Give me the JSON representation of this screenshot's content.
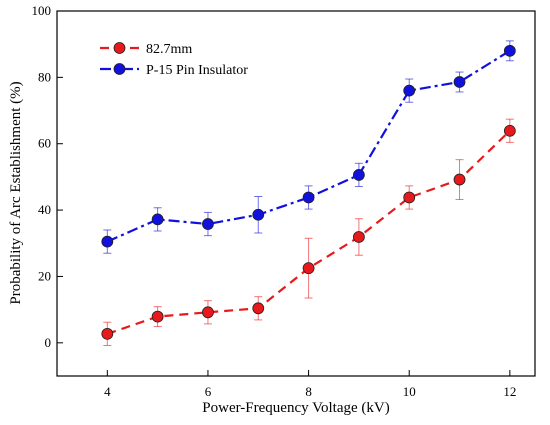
{
  "chart_data": {
    "type": "line",
    "title": "",
    "xlabel": "Power-Frequency Voltage (kV)",
    "ylabel": "Probability of Arc Establishment (%)",
    "xlim": [
      3,
      12.5
    ],
    "ylim": [
      -10,
      100
    ],
    "xticks": [
      4,
      6,
      8,
      10,
      12
    ],
    "yticks": [
      0,
      20,
      40,
      60,
      80,
      100
    ],
    "grid": false,
    "legend_position": "top-left",
    "x": [
      4,
      5,
      6,
      7,
      8,
      9,
      10,
      11,
      12
    ],
    "series": [
      {
        "name": "82.7mm",
        "color": "#e8191c",
        "line_style": "dashed",
        "marker": "circle",
        "values": [
          2.7,
          7.9,
          9.2,
          10.4,
          22.5,
          31.9,
          43.8,
          49.2,
          63.9
        ],
        "error": [
          3.5,
          3.0,
          3.5,
          3.5,
          9.0,
          5.5,
          3.5,
          6.0,
          3.5
        ]
      },
      {
        "name": "P-15 Pin Insulator",
        "color": "#1111dd",
        "line_style": "dash-dot",
        "marker": "circle",
        "values": [
          30.5,
          37.2,
          35.8,
          38.6,
          43.8,
          50.6,
          76.0,
          78.6,
          88.0
        ],
        "error": [
          3.5,
          3.5,
          3.5,
          5.5,
          3.5,
          3.5,
          3.5,
          3.0,
          3.0
        ]
      }
    ]
  }
}
